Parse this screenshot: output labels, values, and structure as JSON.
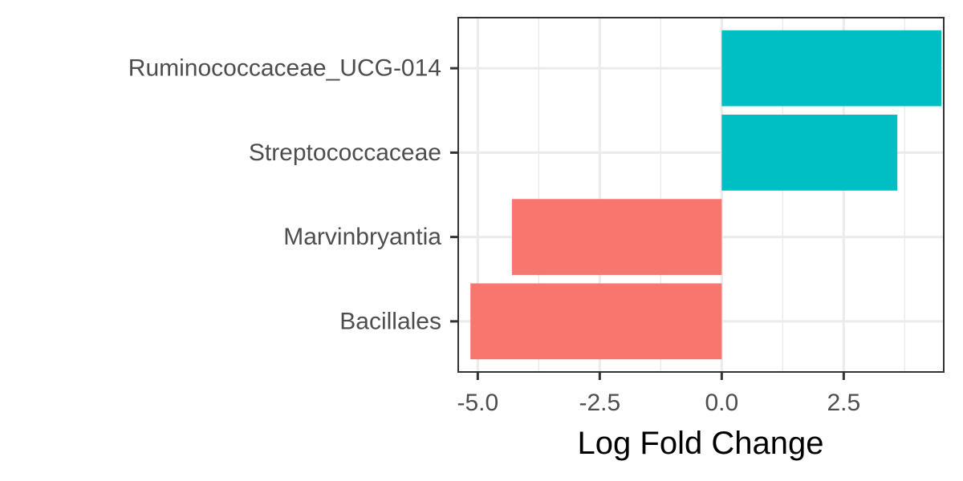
{
  "chart_data": {
    "type": "bar",
    "orientation": "horizontal",
    "categories": [
      "Ruminococcaceae_UCG-014",
      "Streptococcaceae",
      "Marvinbryantia",
      "Bacillales"
    ],
    "values": [
      4.5,
      3.6,
      -4.3,
      -5.15
    ],
    "xlabel": "Log Fold Change",
    "ylabel": "",
    "xlim": [
      -5.4,
      4.55
    ],
    "x_ticks": [
      -5.0,
      -2.5,
      0.0,
      2.5
    ],
    "x_tick_labels": [
      "-5.0",
      "-2.5",
      "0.0",
      "2.5"
    ],
    "grid": true,
    "legend": "none",
    "colors": {
      "positive": "#00BFC4",
      "negative": "#F8766D"
    }
  }
}
